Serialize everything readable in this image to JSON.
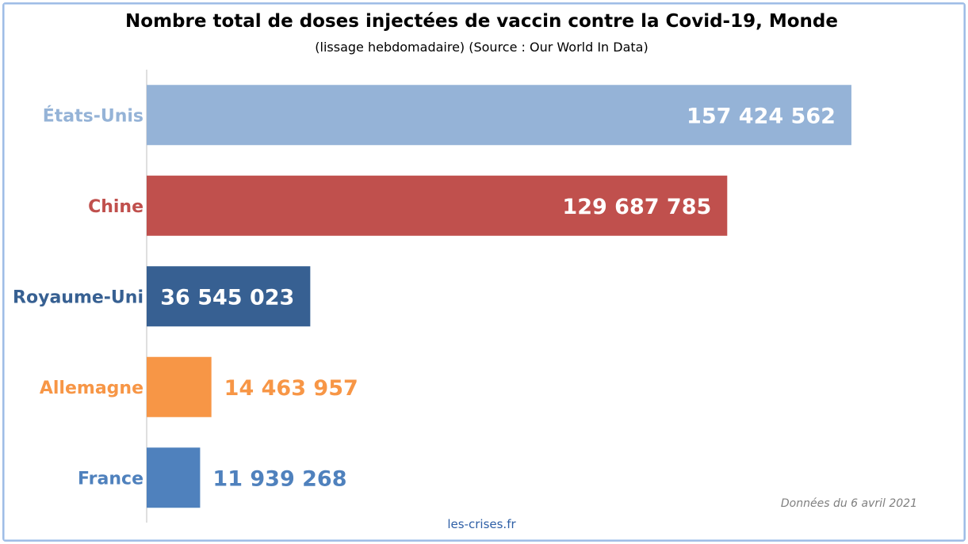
{
  "chart_data": {
    "type": "bar",
    "orientation": "horizontal",
    "title": "Nombre total de doses injectées de vaccin contre la Covid-19, Monde",
    "subtitle": "(lissage hebdomadaire) (Source : Our World In Data)",
    "categories": [
      "États-Unis",
      "Chine",
      "Royaume-Uni",
      "Allemagne",
      "France"
    ],
    "values": [
      157424562,
      129687785,
      36545023,
      14463957,
      11939268
    ],
    "value_labels": [
      "157 424 562",
      "129 687 785",
      "36 545 023",
      "14 463 957",
      "11 939 268"
    ],
    "colors": [
      "#95b3d7",
      "#c0504d",
      "#376092",
      "#f79646",
      "#4f81bd"
    ],
    "label_colors": [
      "#95b3d7",
      "#c0504d",
      "#376092",
      "#f79646",
      "#4f81bd"
    ],
    "xlim": [
      0,
      160000000
    ],
    "grid": false,
    "legend": "none"
  },
  "footnote": "Données du 6 avril 2021",
  "source_credit": "les-crises.fr"
}
